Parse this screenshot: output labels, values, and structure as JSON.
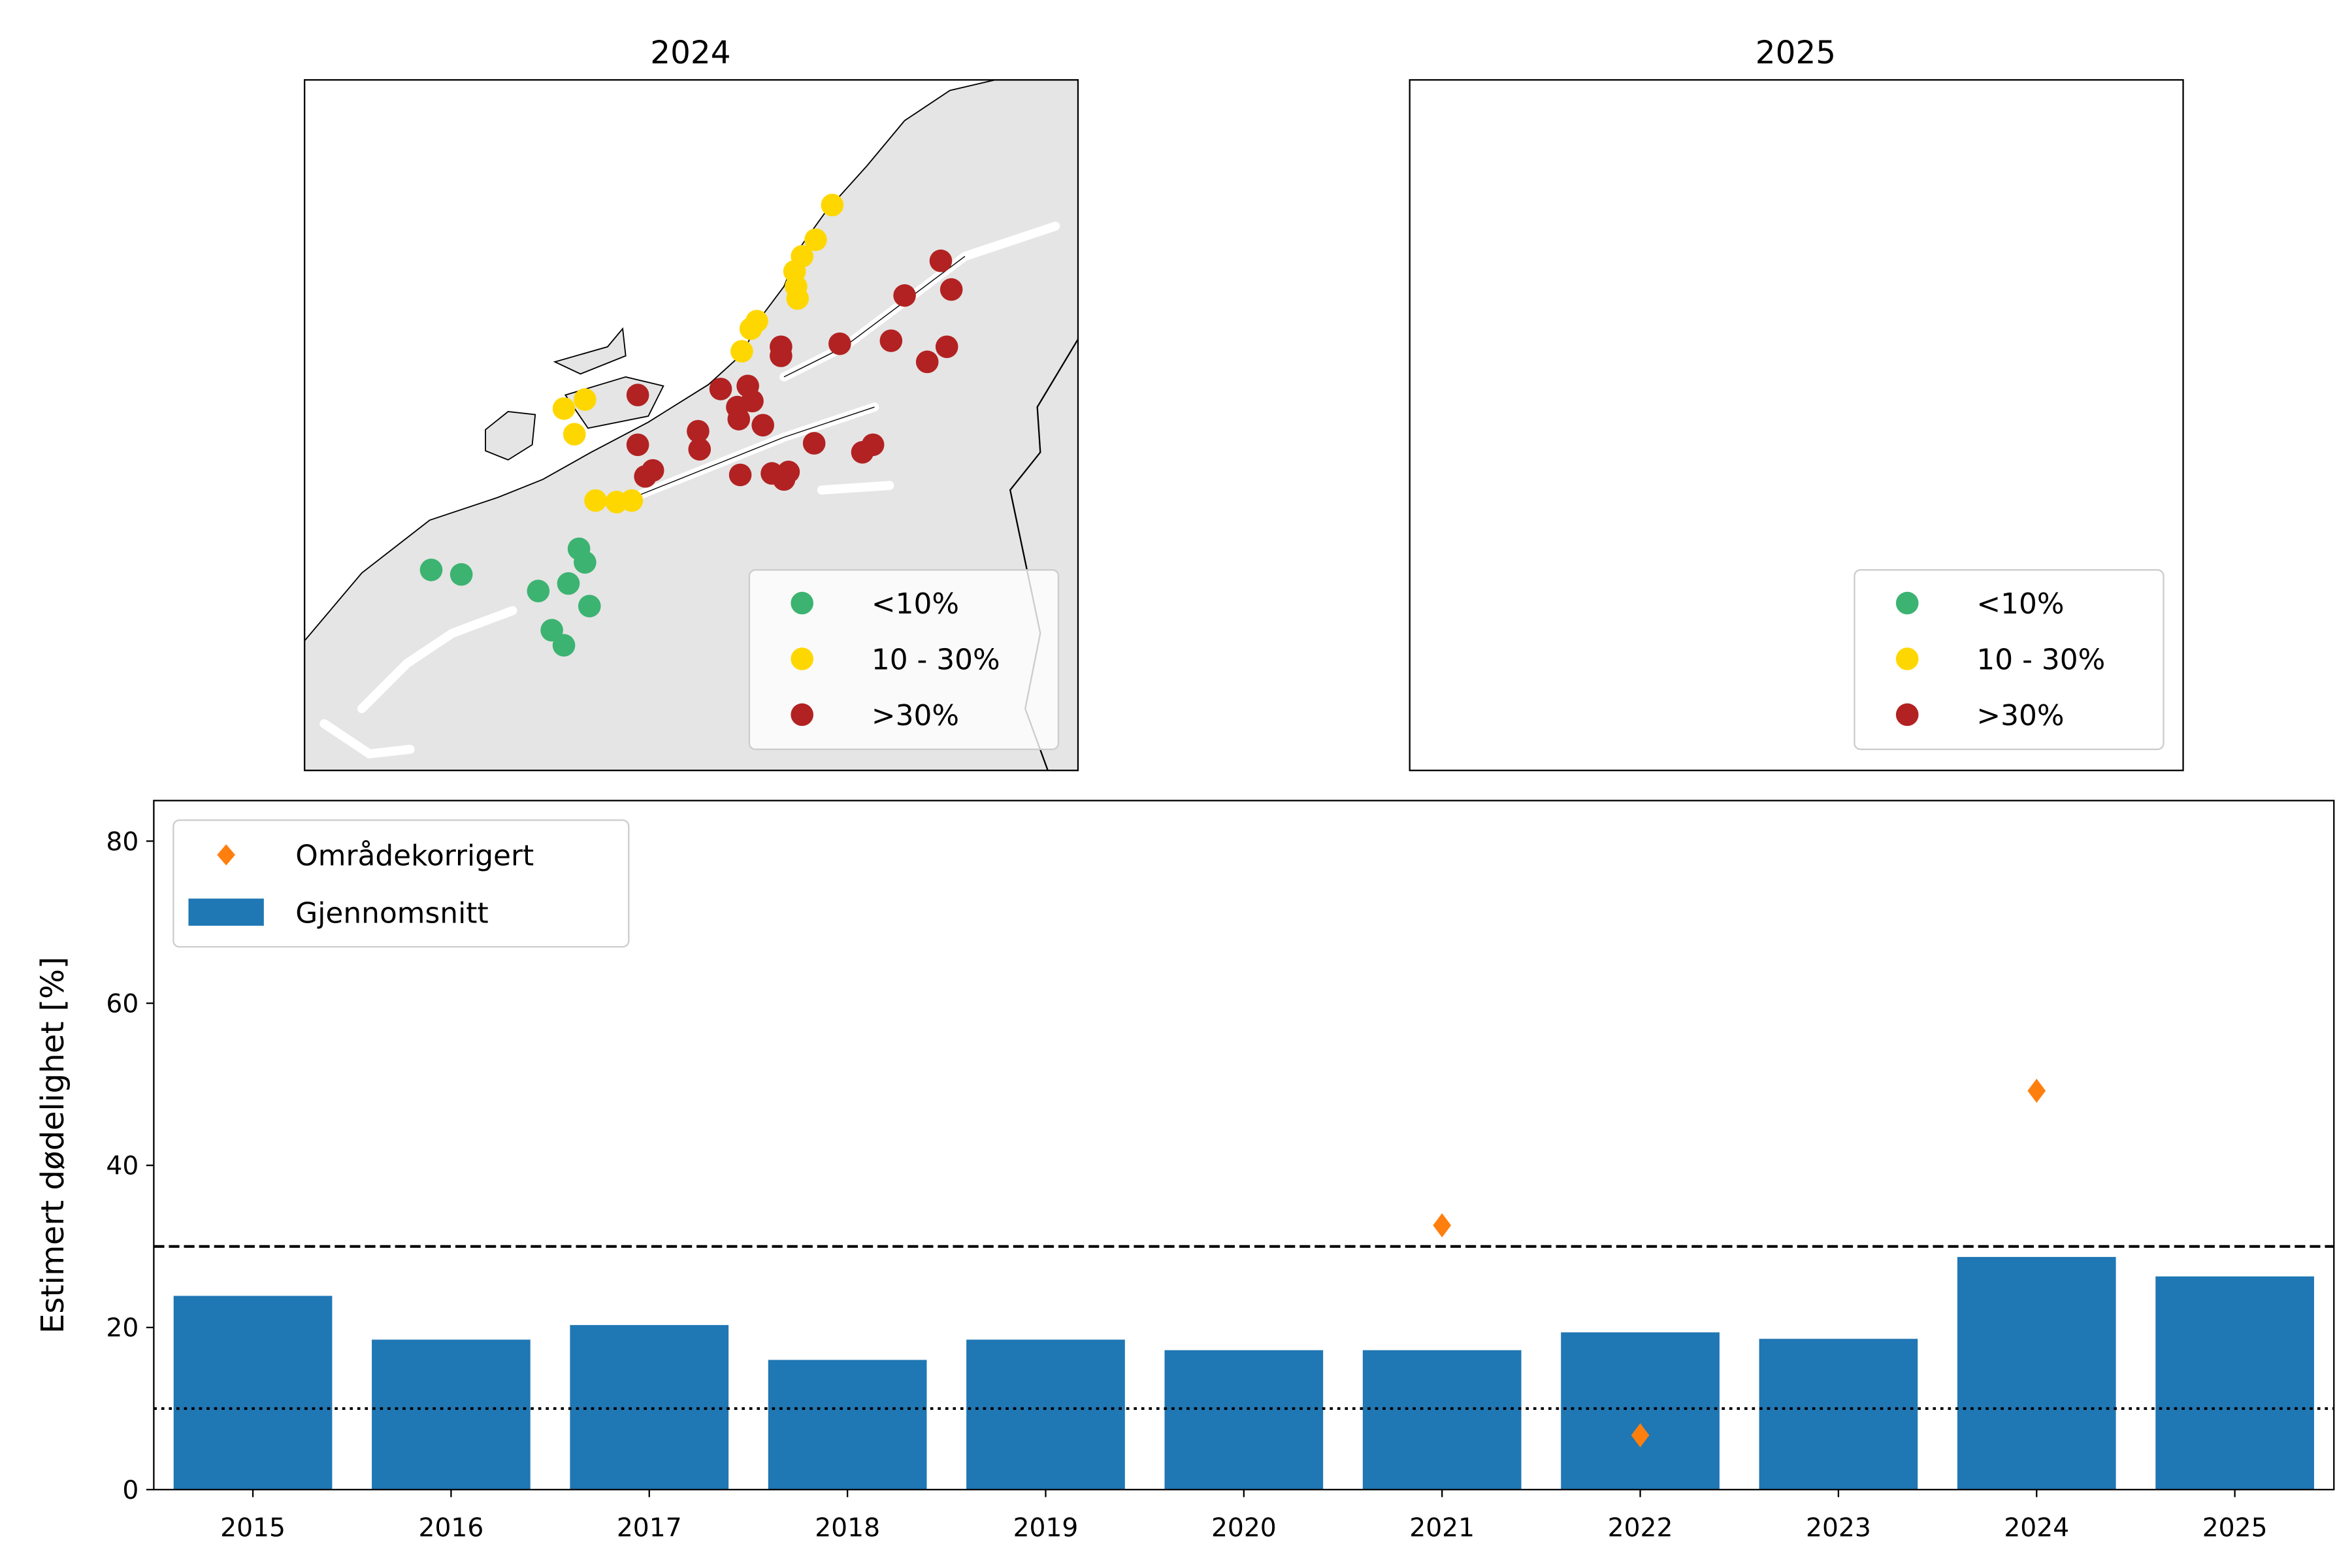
{
  "maps": [
    {
      "title": "2024",
      "legend": [
        {
          "label": "<10%",
          "color": "#3cb371"
        },
        {
          "label": "10 - 30%",
          "color": "#ffd700"
        },
        {
          "label": ">30%",
          "color": "#b22222"
        }
      ]
    },
    {
      "title": "2025",
      "legend": [
        {
          "label": "<10%",
          "color": "#3cb371"
        },
        {
          "label": "10 - 30%",
          "color": "#ffd700"
        },
        {
          "label": ">30%",
          "color": "#b22222"
        }
      ]
    }
  ],
  "colors": {
    "land": "#e5e5e5",
    "sea": "#ffffff",
    "bar": "#1f77b4",
    "marker": "#ff7f0e"
  },
  "chart_data": {
    "type": "bar",
    "xlabel": "",
    "ylabel": "Estimert dødelighet [%]",
    "categories": [
      "2015",
      "2016",
      "2017",
      "2018",
      "2019",
      "2020",
      "2021",
      "2022",
      "2023",
      "2024",
      "2025"
    ],
    "ylim": [
      0,
      85
    ],
    "yticks": [
      "0",
      "20",
      "40",
      "60",
      "80"
    ],
    "series": [
      {
        "name": "Gjennomsnitt",
        "kind": "bar",
        "values": [
          23.9,
          18.5,
          20.3,
          16.0,
          18.5,
          17.2,
          17.2,
          19.4,
          18.6,
          28.7,
          26.3
        ]
      },
      {
        "name": "Områdekorrigert",
        "kind": "scatter",
        "marker": "diamond",
        "points": [
          {
            "x": "2021",
            "y": 32.6
          },
          {
            "x": "2022",
            "y": 6.7
          },
          {
            "x": "2024",
            "y": 49.2
          }
        ]
      }
    ],
    "reference_lines": [
      {
        "y": 30,
        "style": "dashed"
      },
      {
        "y": 10,
        "style": "dotted"
      }
    ],
    "grid": false,
    "legend_position": "top-left"
  }
}
